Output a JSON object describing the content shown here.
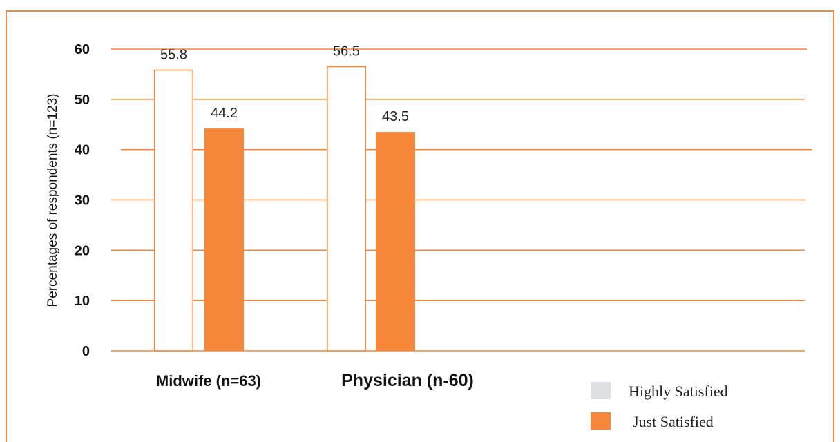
{
  "colors": {
    "accent": "#f5863a",
    "grid": "#f5863a",
    "highly_swatch": "#dfe0e3"
  },
  "chart_data": {
    "type": "bar",
    "categories": [
      "Midwife (n=63)",
      "Physician (n-60)"
    ],
    "series": [
      {
        "name": "Highly Satisfied",
        "values": [
          55.8,
          56.5
        ],
        "style": "outline"
      },
      {
        "name": "Just Satisfied",
        "values": [
          44.2,
          43.5
        ],
        "style": "filled"
      }
    ],
    "data_labels": [
      [
        "55.8",
        "56.5"
      ],
      [
        "44.2",
        "43.5"
      ]
    ],
    "ylabel": "Percentages of respondents (n=123)",
    "xlabel": "",
    "ylim": [
      0,
      60
    ],
    "yticks": [
      0,
      10,
      20,
      30,
      40,
      50,
      60
    ],
    "grid": true,
    "legend_position": "bottom-right"
  }
}
